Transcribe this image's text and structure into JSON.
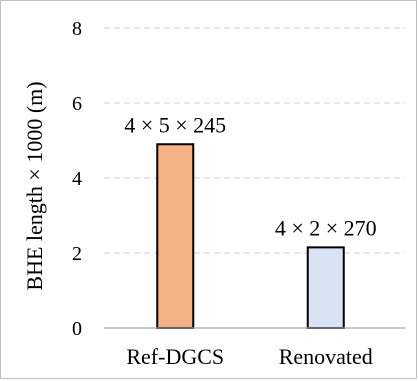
{
  "chart_data": {
    "type": "bar",
    "categories": [
      "Ref-DGCS",
      "Renovated"
    ],
    "values": [
      4.9,
      2.15
    ],
    "data_labels": [
      "4 × 5 × 245",
      "4 × 2 × 270"
    ],
    "ylabel": "BHE length × 1000 (m)",
    "xlabel": "",
    "title": "",
    "ylim": [
      0,
      8
    ],
    "yticks": [
      0,
      2,
      4,
      6,
      8
    ],
    "ytick_labels": [
      "0",
      "2",
      "4",
      "6",
      "8"
    ],
    "grid": true,
    "legend": "none",
    "colors": {
      "bar_fills": [
        "#f4b183",
        "#dae3f3"
      ],
      "bar_stroke": "#000000",
      "grid": "#d9d9d9",
      "axis": "#a6a6a6"
    }
  }
}
